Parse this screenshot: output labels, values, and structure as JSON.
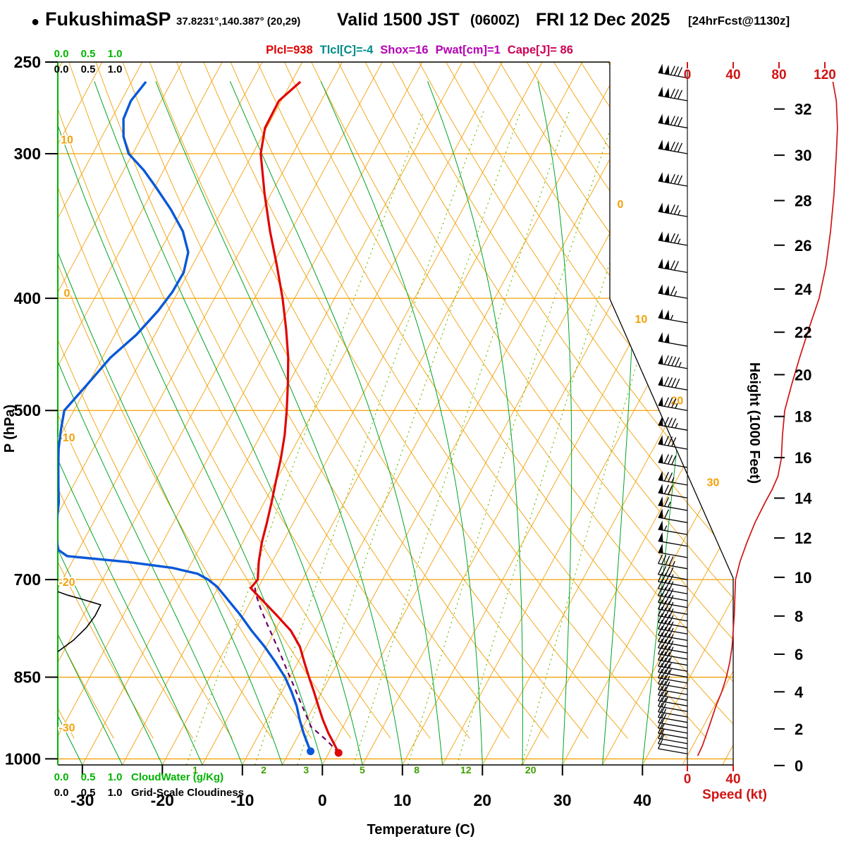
{
  "header": {
    "bullet": "●",
    "station": "FukushimaSP",
    "coords": "37.8231°,140.387° (20,29)",
    "valid": "Valid 1500 JST",
    "zulu": "(0600Z)",
    "date": "FRI 12 Dec 2025",
    "fcst": "[24hrFcst@1130z]"
  },
  "indices": [
    {
      "text": "Plcl=938",
      "color": "#e00000"
    },
    {
      "text": "Tlcl[C]=-4",
      "color": "#008b8b"
    },
    {
      "text": "Shox=16",
      "color": "#b400b4"
    },
    {
      "text": "Pwat[cm]=1",
      "color": "#b400b4"
    },
    {
      "text": "Cape[J]= 86",
      "color": "#cc0055"
    }
  ],
  "axes": {
    "pressure": {
      "label": "P (hPa)",
      "ticks": [
        250,
        300,
        400,
        500,
        700,
        850,
        1000
      ]
    },
    "temperature": {
      "label": "Temperature (C)",
      "ticks": [
        -30,
        -20,
        -10,
        0,
        10,
        20,
        30,
        40
      ]
    },
    "height": {
      "label": "Height (1000 Feet)",
      "ticks": [
        0,
        2,
        4,
        6,
        8,
        10,
        12,
        14,
        16,
        18,
        20,
        22,
        24,
        26,
        28,
        30,
        32
      ]
    },
    "speed": {
      "label": "Speed (kt)",
      "top_ticks": [
        0,
        40,
        80,
        120
      ],
      "bottom_ticks": [
        0,
        40
      ]
    },
    "cloudwater": {
      "label": "CloudWater (g/Kg)",
      "scale": [
        "0.0",
        "0.5",
        "1.0"
      ]
    },
    "cloudiness": {
      "label": "Grid-Scale Cloudiness",
      "scale": [
        "0.0",
        "0.5",
        "1.0"
      ]
    }
  },
  "grid_labels": {
    "dry_adiabats": [
      10,
      0,
      -10,
      -20,
      -30
    ],
    "isotherms": [
      0,
      10,
      20,
      30
    ],
    "mixing_ratio": [
      1,
      2,
      3,
      5,
      8,
      12,
      20
    ]
  },
  "colors": {
    "grid_orange": "#f2a10a",
    "moist_green": "#00a325",
    "mixing_green": "#6fbb00",
    "mixing_label_green": "#3da000",
    "left_axis_green": "#00b400",
    "temperature_red": "#e00505",
    "dewpoint_blue": "#0a58d8",
    "parcel_purple": "#6a006a",
    "speed_red": "#d01414",
    "black": "#000000"
  },
  "chart_data": {
    "type": "skewt_logp_sounding",
    "pressure_range_hPa": [
      250,
      1012
    ],
    "temperature_axis_C": [
      -40,
      50
    ],
    "temperature_C": [
      [
        988,
        1.2
      ],
      [
        970,
        0.0
      ],
      [
        950,
        -1.4
      ],
      [
        925,
        -3.0
      ],
      [
        900,
        -4.5
      ],
      [
        875,
        -6.0
      ],
      [
        850,
        -7.6
      ],
      [
        825,
        -9.2
      ],
      [
        800,
        -10.8
      ],
      [
        775,
        -13.0
      ],
      [
        750,
        -16.0
      ],
      [
        725,
        -19.2
      ],
      [
        712,
        -20.9
      ],
      [
        700,
        -20.6
      ],
      [
        675,
        -21.7
      ],
      [
        650,
        -22.6
      ],
      [
        625,
        -23.3
      ],
      [
        600,
        -24.1
      ],
      [
        575,
        -25.0
      ],
      [
        550,
        -25.9
      ],
      [
        525,
        -27.0
      ],
      [
        500,
        -28.4
      ],
      [
        475,
        -30.0
      ],
      [
        450,
        -31.8
      ],
      [
        425,
        -34.0
      ],
      [
        400,
        -36.5
      ],
      [
        375,
        -39.4
      ],
      [
        350,
        -42.6
      ],
      [
        325,
        -45.8
      ],
      [
        300,
        -49.0
      ],
      [
        285,
        -50.2
      ],
      [
        270,
        -50.3
      ],
      [
        260,
        -48.9
      ]
    ],
    "dewpoint_C": [
      [
        985,
        -2.4
      ],
      [
        970,
        -3.3
      ],
      [
        950,
        -4.5
      ],
      [
        925,
        -5.9
      ],
      [
        900,
        -7.2
      ],
      [
        875,
        -8.8
      ],
      [
        850,
        -10.6
      ],
      [
        825,
        -12.8
      ],
      [
        800,
        -15.2
      ],
      [
        775,
        -17.9
      ],
      [
        750,
        -20.5
      ],
      [
        725,
        -23.4
      ],
      [
        710,
        -25.2
      ],
      [
        700,
        -26.8
      ],
      [
        692,
        -28.5
      ],
      [
        684,
        -32.0
      ],
      [
        676,
        -38.0
      ],
      [
        668,
        -46.0
      ],
      [
        660,
        -47.5
      ],
      [
        640,
        -48.9
      ],
      [
        620,
        -49.8
      ],
      [
        600,
        -50.7
      ],
      [
        580,
        -51.9
      ],
      [
        560,
        -53.1
      ],
      [
        540,
        -54.3
      ],
      [
        520,
        -55.3
      ],
      [
        500,
        -56.2
      ],
      [
        475,
        -55.1
      ],
      [
        450,
        -54.0
      ],
      [
        430,
        -52.3
      ],
      [
        410,
        -51.2
      ],
      [
        395,
        -50.7
      ],
      [
        380,
        -50.6
      ],
      [
        365,
        -51.4
      ],
      [
        350,
        -53.5
      ],
      [
        335,
        -56.5
      ],
      [
        320,
        -60.0
      ],
      [
        310,
        -62.5
      ],
      [
        300,
        -65.5
      ],
      [
        290,
        -67.3
      ],
      [
        280,
        -68.5
      ],
      [
        270,
        -68.8
      ],
      [
        260,
        -68.2
      ]
    ],
    "parcel_C": [
      [
        988,
        1.2
      ],
      [
        965,
        -1.0
      ],
      [
        938,
        -4.0
      ],
      [
        915,
        -5.5
      ],
      [
        890,
        -7.2
      ],
      [
        865,
        -8.9
      ],
      [
        840,
        -10.7
      ],
      [
        815,
        -12.5
      ],
      [
        790,
        -14.4
      ],
      [
        765,
        -16.4
      ],
      [
        740,
        -18.4
      ],
      [
        720,
        -19.9
      ],
      [
        708,
        -20.6
      ]
    ],
    "cloud_fraction": [
      [
        808,
        0.0
      ],
      [
        790,
        0.28
      ],
      [
        770,
        0.52
      ],
      [
        752,
        0.68
      ],
      [
        736,
        0.78
      ],
      [
        728,
        0.45
      ],
      [
        722,
        0.18
      ],
      [
        717,
        0.0
      ]
    ],
    "wind_speed_kt": [
      [
        994,
        9
      ],
      [
        975,
        13
      ],
      [
        950,
        17
      ],
      [
        925,
        21
      ],
      [
        900,
        25
      ],
      [
        875,
        30
      ],
      [
        850,
        34
      ],
      [
        825,
        37
      ],
      [
        800,
        39
      ],
      [
        775,
        40
      ],
      [
        750,
        41
      ],
      [
        725,
        41.5
      ],
      [
        700,
        42
      ],
      [
        675,
        46
      ],
      [
        650,
        52
      ],
      [
        625,
        59
      ],
      [
        600,
        68
      ],
      [
        585,
        74
      ],
      [
        570,
        79
      ],
      [
        550,
        82
      ],
      [
        525,
        83
      ],
      [
        500,
        85
      ],
      [
        475,
        91
      ],
      [
        450,
        98
      ],
      [
        425,
        106
      ],
      [
        400,
        115
      ],
      [
        375,
        121
      ],
      [
        350,
        125
      ],
      [
        325,
        128
      ],
      [
        300,
        130
      ],
      [
        285,
        131
      ],
      [
        270,
        130
      ],
      [
        260,
        127
      ]
    ],
    "wind_barbs": {
      "dir_deg": 280,
      "levels_p_kt": [
        [
          990,
          10
        ],
        [
          980,
          10
        ],
        [
          970,
          15
        ],
        [
          960,
          15
        ],
        [
          950,
          15
        ],
        [
          940,
          20
        ],
        [
          930,
          20
        ],
        [
          920,
          20
        ],
        [
          910,
          20
        ],
        [
          900,
          25
        ],
        [
          890,
          25
        ],
        [
          880,
          30
        ],
        [
          870,
          30
        ],
        [
          860,
          30
        ],
        [
          850,
          35
        ],
        [
          840,
          35
        ],
        [
          830,
          35
        ],
        [
          820,
          40
        ],
        [
          810,
          40
        ],
        [
          800,
          40
        ],
        [
          790,
          40
        ],
        [
          780,
          40
        ],
        [
          770,
          40
        ],
        [
          760,
          40
        ],
        [
          750,
          40
        ],
        [
          740,
          40
        ],
        [
          730,
          40
        ],
        [
          720,
          40
        ],
        [
          710,
          40
        ],
        [
          700,
          40
        ],
        [
          685,
          45
        ],
        [
          670,
          50
        ],
        [
          655,
          50
        ],
        [
          640,
          55
        ],
        [
          625,
          60
        ],
        [
          610,
          65
        ],
        [
          595,
          70
        ],
        [
          580,
          75
        ],
        [
          560,
          80
        ],
        [
          540,
          80
        ],
        [
          520,
          85
        ],
        [
          500,
          85
        ],
        [
          480,
          90
        ],
        [
          460,
          95
        ],
        [
          440,
          100
        ],
        [
          420,
          105
        ],
        [
          400,
          115
        ],
        [
          380,
          120
        ],
        [
          360,
          125
        ],
        [
          340,
          125
        ],
        [
          320,
          130
        ],
        [
          300,
          130
        ],
        [
          285,
          130
        ],
        [
          270,
          130
        ],
        [
          258,
          130
        ]
      ]
    }
  }
}
